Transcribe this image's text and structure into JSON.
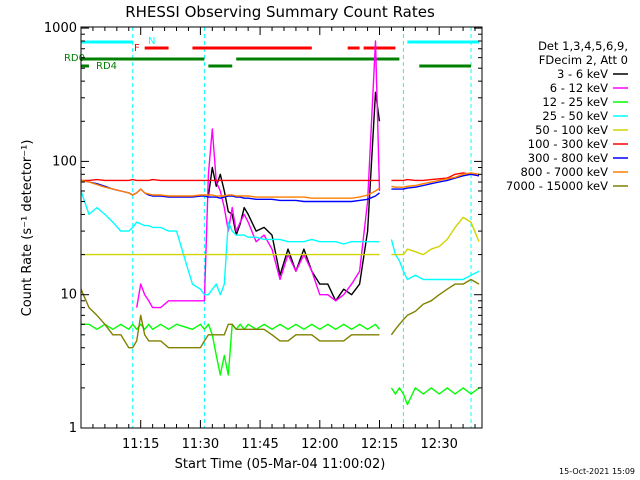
{
  "chart_data": {
    "type": "line",
    "title": "RHESSI Observing Summary Count Rates",
    "xlabel": "Start Time (05-Mar-04 11:00:02)",
    "ylabel": "Count Rate (s⁻¹ detector⁻¹)",
    "y_scale": "log",
    "ylim": [
      1,
      1000
    ],
    "xlim": [
      "11:00",
      "12:40"
    ],
    "y_ticks": [
      "1",
      "10",
      "100",
      "1000"
    ],
    "x_ticks": [
      "11:15",
      "11:30",
      "11:45",
      "12:00",
      "12:15",
      "12:30"
    ],
    "x_minutes": [
      0,
      2,
      4,
      6,
      8,
      10,
      12,
      13,
      14,
      15,
      16,
      17,
      18,
      20,
      22,
      24,
      28,
      30,
      31,
      32,
      33,
      34,
      35,
      36,
      37,
      38,
      39,
      40,
      41,
      42,
      44,
      46,
      48,
      50,
      52,
      54,
      56,
      58,
      60,
      62,
      64,
      66,
      68,
      70,
      72,
      74,
      75,
      76,
      77,
      78,
      79,
      80,
      81,
      82,
      84,
      86,
      88,
      90,
      92,
      94,
      96,
      98,
      100
    ],
    "legend_header": [
      "Det 1,3,4,5,6,9,",
      "FDecim 2, Att 0"
    ],
    "legend_position": "right",
    "grid": false,
    "series": [
      {
        "name": "3 - 6 keV",
        "color": "#000000",
        "values": [
          null,
          null,
          null,
          null,
          null,
          null,
          null,
          null,
          null,
          null,
          null,
          null,
          null,
          null,
          null,
          null,
          null,
          null,
          null,
          55,
          90,
          65,
          80,
          60,
          42,
          40,
          28,
          34,
          45,
          40,
          30,
          32,
          28,
          14,
          22,
          15,
          22,
          15,
          12,
          12,
          9,
          11,
          10,
          12,
          30,
          330,
          200,
          null,
          null,
          null,
          null,
          null,
          null,
          null,
          null,
          null,
          null,
          null,
          null,
          null,
          null,
          null,
          null
        ]
      },
      {
        "name": "6 - 12 keV",
        "color": "#ff00ff",
        "values": [
          null,
          null,
          null,
          null,
          null,
          null,
          null,
          null,
          8,
          12,
          10,
          9,
          8,
          8,
          9,
          9,
          9,
          9,
          9,
          80,
          175,
          70,
          60,
          45,
          30,
          45,
          30,
          35,
          40,
          35,
          25,
          28,
          22,
          13,
          20,
          15,
          20,
          15,
          10,
          10,
          9,
          10,
          12,
          15,
          50,
          800,
          60,
          null,
          null,
          null,
          null,
          null,
          null,
          null,
          null,
          null,
          null,
          null,
          null,
          null,
          null,
          null,
          null
        ]
      },
      {
        "name": "12 - 25 keV",
        "color": "#00ff00",
        "values": [
          6,
          6,
          5.5,
          6,
          5.5,
          6,
          5.5,
          6,
          5.5,
          6,
          5.5,
          6,
          5.5,
          6,
          5.5,
          6,
          5.5,
          6,
          5.5,
          6,
          5,
          3.5,
          2.5,
          3.5,
          2.5,
          6,
          5.5,
          6,
          5.5,
          6,
          5.5,
          6,
          5.5,
          6,
          5.5,
          6,
          5.5,
          6,
          5.5,
          6,
          5.5,
          6,
          5.5,
          6,
          5.5,
          6,
          5.5,
          null,
          null,
          2,
          1.8,
          2,
          1.8,
          1.5,
          2,
          1.8,
          2,
          1.8,
          2,
          1.8,
          2,
          1.8,
          2
        ]
      },
      {
        "name": "25 - 50 keV",
        "color": "#00ffff",
        "values": [
          60,
          40,
          45,
          40,
          35,
          30,
          30,
          32,
          35,
          34,
          33,
          33,
          32,
          32,
          30,
          30,
          12,
          11,
          10,
          10,
          11,
          12,
          10,
          12,
          35,
          30,
          28,
          28,
          28,
          27,
          27,
          26,
          26,
          26,
          25,
          25,
          25,
          26,
          25,
          25,
          25,
          24,
          25,
          25,
          25,
          25,
          25,
          null,
          null,
          26,
          20,
          18,
          15,
          13,
          14,
          13,
          13,
          13,
          13,
          13,
          13,
          14,
          15
        ]
      },
      {
        "name": "50 - 100 keV",
        "color": "#d2d200",
        "values": [
          20,
          20,
          20,
          20,
          20,
          20,
          20,
          20,
          20,
          20,
          20,
          20,
          20,
          20,
          20,
          20,
          20,
          20,
          20,
          20,
          20,
          20,
          20,
          20,
          20,
          20,
          20,
          20,
          20,
          20,
          20,
          20,
          20,
          20,
          20,
          20,
          20,
          20,
          20,
          20,
          20,
          20,
          20,
          20,
          20,
          20,
          20,
          null,
          null,
          20,
          20,
          20,
          20,
          22,
          21,
          20,
          22,
          23,
          26,
          32,
          38,
          35,
          25
        ]
      },
      {
        "name": "100 - 300 keV",
        "color": "#ff0000",
        "values": [
          72,
          72,
          73,
          72,
          72,
          72,
          72,
          73,
          72,
          72,
          72,
          72,
          73,
          72,
          72,
          72,
          72,
          72,
          72,
          72,
          72,
          72,
          72,
          72,
          72,
          72,
          72,
          72,
          72,
          72,
          72,
          72,
          72,
          72,
          72,
          72,
          72,
          72,
          72,
          72,
          72,
          72,
          72,
          72,
          72,
          72,
          72,
          null,
          null,
          72,
          72,
          72,
          72,
          73,
          72,
          72,
          73,
          74,
          75,
          80,
          82,
          80,
          78
        ]
      },
      {
        "name": "300 - 800 keV",
        "color": "#0000ff",
        "values": [
          72,
          70,
          68,
          65,
          62,
          60,
          58,
          56,
          58,
          62,
          58,
          56,
          55,
          55,
          54,
          54,
          54,
          55,
          55,
          54,
          54,
          54,
          53,
          54,
          55,
          55,
          54,
          54,
          53,
          53,
          52,
          52,
          52,
          51,
          51,
          51,
          50,
          50,
          50,
          50,
          50,
          50,
          50,
          51,
          52,
          55,
          58,
          null,
          null,
          62,
          62,
          62,
          62,
          63,
          64,
          66,
          68,
          70,
          72,
          75,
          78,
          80,
          78
        ]
      },
      {
        "name": "800 - 7000 keV",
        "color": "#ff7f00",
        "values": [
          72,
          70,
          67,
          64,
          62,
          60,
          58,
          56,
          58,
          62,
          58,
          57,
          56,
          56,
          55,
          55,
          55,
          56,
          56,
          56,
          56,
          55,
          55,
          55,
          56,
          56,
          55,
          55,
          55,
          55,
          54,
          54,
          54,
          54,
          54,
          54,
          54,
          53,
          53,
          53,
          53,
          53,
          53,
          54,
          56,
          60,
          63,
          null,
          null,
          65,
          64,
          64,
          64,
          65,
          66,
          68,
          70,
          72,
          74,
          76,
          80,
          82,
          80
        ]
      },
      {
        "name": "7000 - 15000 keV",
        "color": "#808000",
        "values": [
          11,
          8,
          7,
          6,
          5,
          5,
          4,
          4,
          4.5,
          7,
          5,
          4.5,
          4.5,
          4.5,
          4,
          4,
          4,
          4,
          4.5,
          5,
          5,
          5,
          5,
          5,
          6,
          6,
          5.5,
          5.5,
          5.5,
          5.5,
          5.5,
          5.5,
          5,
          4.5,
          4.5,
          5,
          5,
          5,
          4.5,
          4.5,
          4.5,
          4.5,
          5,
          5,
          5,
          5,
          5,
          null,
          null,
          5,
          5.5,
          6,
          6.5,
          7,
          7.5,
          8.5,
          9,
          10,
          11,
          12,
          12,
          13,
          12
        ]
      }
    ],
    "flag_bars": [
      {
        "name": "N",
        "color": "#00ffff",
        "segments": [
          [
            "11:00",
            "11:13"
          ],
          [
            "12:22",
            "12:40"
          ]
        ]
      },
      {
        "name": "F",
        "color": "#ff0000",
        "segments": [
          [
            "11:16",
            "11:22"
          ],
          [
            "11:28",
            "11:58"
          ],
          [
            "12:07",
            "12:10"
          ],
          [
            "12:11",
            "12:19"
          ]
        ]
      },
      {
        "name": "RD0",
        "color": "#008000",
        "segments": [
          [
            "11:00",
            "11:31"
          ],
          [
            "11:39",
            "12:20"
          ]
        ]
      },
      {
        "name": "RD4",
        "color": "#008000",
        "segments": [
          [
            "11:00",
            "11:02"
          ],
          [
            "11:32",
            "11:38"
          ],
          [
            "12:25",
            "12:38"
          ]
        ]
      }
    ],
    "vertical_markers": [
      "11:13",
      "11:31",
      "12:21",
      "12:38"
    ],
    "timestamp": "15-Oct-2021 15:09"
  }
}
